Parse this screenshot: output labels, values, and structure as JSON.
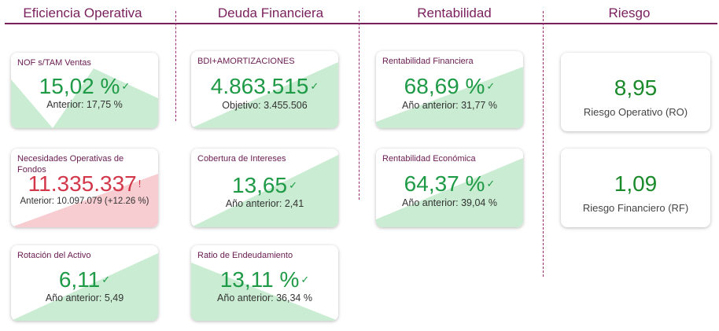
{
  "sections": {
    "eficiencia": "Eficiencia Operativa",
    "deuda": "Deuda Financiera",
    "rentabilidad": "Rentabilidad",
    "riesgo": "Riesgo"
  },
  "colors": {
    "accent": "#7a1f5c",
    "good": "#1f9a46",
    "bad": "#d2384a",
    "good_fill": "#c9ecd2",
    "bad_fill": "#f7cdd1"
  },
  "cards": {
    "nof": {
      "title": "NOF s/TAM Ventas",
      "value": "15,02 %",
      "sub": "Anterior: 17,75 %",
      "status_icon": "check-icon",
      "mark": "✓"
    },
    "necesidades": {
      "title": "Necesidades Operativas de Fondos",
      "value": "11.335.337",
      "sub": "Anterior: 10.097.079 (+12.26 %)",
      "status_icon": "alert-icon",
      "mark": "!"
    },
    "rotacion": {
      "title": "Rotación del Activo",
      "value": "6,11",
      "sub": "Año anterior: 5,49",
      "status_icon": "check-icon",
      "mark": "✓"
    },
    "bdi": {
      "title": "BDI+AMORTIZACIONES",
      "value": "4.863.515",
      "sub": "Objetivo: 3.455.506",
      "status_icon": "check-icon",
      "mark": "✓"
    },
    "cobertura": {
      "title": "Cobertura de Intereses",
      "value": "13,65",
      "sub": "Año anterior: 2,41",
      "status_icon": "check-icon",
      "mark": "✓"
    },
    "endeudamiento": {
      "title": "Ratio de Endeudamiento",
      "value": "13,11 %",
      "sub": "Año anterior: 36,34 %",
      "status_icon": "check-icon",
      "mark": "✓"
    },
    "rent_financiera": {
      "title": "Rentabilidad Financiera",
      "value": "68,69 %",
      "sub": "Año anterior: 31,77 %",
      "status_icon": "check-icon",
      "mark": "✓"
    },
    "rent_economica": {
      "title": "Rentabilidad Económica",
      "value": "64,37 %",
      "sub": "Año anterior: 39,04 %",
      "status_icon": "check-icon",
      "mark": "✓"
    }
  },
  "risk": {
    "operativo": {
      "value": "8,95",
      "label": "Riesgo Operativo (RO)"
    },
    "financiero": {
      "value": "1,09",
      "label": "Riesgo Financiero (RF)"
    }
  }
}
